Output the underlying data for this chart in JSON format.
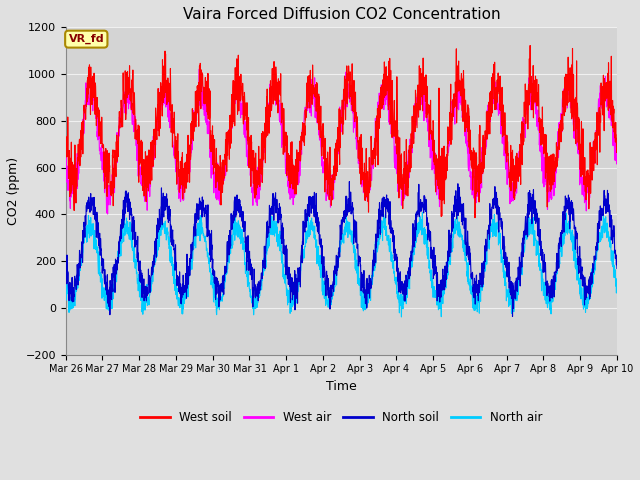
{
  "title": "Vaira Forced Diffusion CO2 Concentration",
  "xlabel": "Time",
  "ylabel": "CO2 (ppm)",
  "ylim": [
    -200,
    1200
  ],
  "yticks": [
    -200,
    0,
    200,
    400,
    600,
    800,
    1000,
    1200
  ],
  "x_labels": [
    "Mar 26",
    "Mar 27",
    "Mar 28",
    "Mar 29",
    "Mar 30",
    "Mar 31",
    "Apr 1",
    "Apr 2",
    "Apr 3",
    "Apr 4",
    "Apr 5",
    "Apr 6",
    "Apr 7",
    "Apr 8",
    "Apr 9",
    "Apr 10"
  ],
  "n_days": 15,
  "west_soil_color": "#ff0000",
  "west_air_color": "#ff00ff",
  "north_soil_color": "#0000cc",
  "north_air_color": "#00ccff",
  "figure_bg_color": "#e0e0e0",
  "plot_bg_color": "#d4d4d4",
  "grid_color": "#f0f0f0",
  "label_box_color": "#ffffaa",
  "label_box_edge": "#aa8800",
  "label_text_color": "#880000",
  "seed": 12345,
  "legend_labels": [
    "West soil",
    "West air",
    "North soil",
    "North air"
  ],
  "legend_colors": [
    "#ff0000",
    "#ff00ff",
    "#0000cc",
    "#00ccff"
  ],
  "figwidth": 6.4,
  "figheight": 4.8,
  "dpi": 100
}
